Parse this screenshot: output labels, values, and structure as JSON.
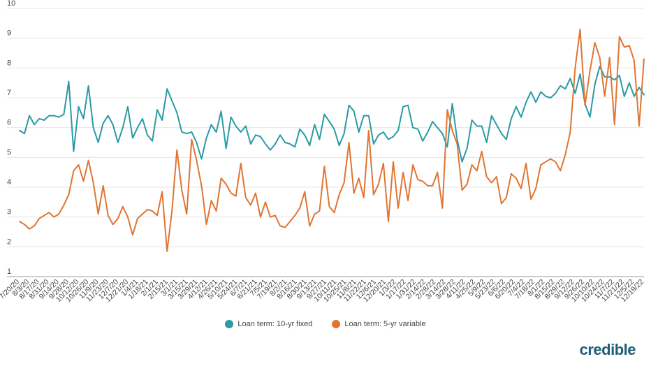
{
  "chart_data": {
    "type": "line",
    "title": "",
    "xlabel": "",
    "ylabel": "",
    "ylim": [
      1,
      10
    ],
    "yticks": [
      1,
      2,
      3,
      4,
      5,
      6,
      7,
      8,
      9,
      10
    ],
    "grid": true,
    "legend_position": "bottom-center",
    "x_labels": [
      "7/20/20",
      "8/3/20",
      "8/17/20",
      "8/31/20",
      "9/14/20",
      "9/28/20",
      "10/12/20",
      "10/26/20",
      "11/9/20",
      "11/23/20",
      "12/7/20",
      "12/21/20",
      "1/4/21",
      "1/18/21",
      "2/1/21",
      "2/15/21",
      "3/1/21",
      "3/15/21",
      "3/29/21",
      "4/12/21",
      "4/26/21",
      "5/10/21",
      "5/24/21",
      "6/7/21",
      "6/21/21",
      "7/5/21",
      "7/19/21",
      "8/2/21",
      "8/16/21",
      "8/30/21",
      "9/13/21",
      "9/27/21",
      "10/11/21",
      "10/25/21",
      "11/8/21",
      "11/22/21",
      "12/6/21",
      "12/20/21",
      "1/3/22",
      "1/17/22",
      "1/31/22",
      "2/14/22",
      "2/28/22",
      "3/14/22",
      "3/28/22",
      "4/11/22",
      "4/25/22",
      "5/9/22",
      "5/23/22",
      "6/6/22",
      "6/20/22",
      "7/4/22",
      "7/18/22",
      "8/1/22",
      "8/15/22",
      "8/29/22",
      "9/12/22",
      "9/26/22",
      "10/10/22",
      "10/24/22",
      "11/7/22",
      "11/21/22",
      "12/5/22",
      "12/19/22"
    ],
    "series": [
      {
        "name": "Loan term: 10-yr fixed",
        "color": "#2a9aa5",
        "values": [
          5.9,
          5.8,
          6.4,
          6.1,
          6.3,
          6.25,
          6.4,
          6.4,
          6.35,
          6.45,
          7.55,
          5.2,
          6.7,
          6.3,
          7.4,
          6.0,
          5.5,
          6.15,
          6.4,
          6.1,
          5.5,
          6.0,
          6.7,
          5.65,
          6.0,
          6.3,
          5.75,
          5.55,
          6.6,
          6.25,
          7.3,
          6.9,
          6.5,
          5.85,
          5.8,
          5.85,
          5.5,
          4.95,
          5.65,
          6.1,
          5.85,
          6.55,
          5.3,
          6.35,
          6.05,
          5.85,
          6.05,
          5.45,
          5.75,
          5.7,
          5.45,
          5.25,
          5.45,
          5.75,
          5.5,
          5.45,
          5.35,
          5.95,
          5.75,
          5.4,
          6.1,
          5.6,
          6.45,
          6.2,
          5.95,
          5.4,
          5.8,
          6.75,
          6.55,
          5.85,
          6.4,
          6.4,
          5.45,
          5.75,
          5.85,
          5.6,
          5.7,
          5.9,
          6.7,
          6.75,
          6.0,
          5.95,
          5.55,
          5.85,
          6.2,
          6.0,
          5.8,
          5.35,
          6.8,
          5.6,
          4.85,
          5.3,
          6.25,
          6.05,
          6.05,
          5.5,
          6.4,
          6.1,
          5.8,
          5.6,
          6.3,
          6.7,
          6.35,
          6.85,
          7.2,
          6.85,
          7.2,
          7.05,
          7.0,
          7.15,
          7.4,
          7.3,
          7.65,
          7.15,
          7.8,
          6.8,
          6.35,
          7.45,
          8.05,
          7.7,
          7.7,
          7.6,
          7.75,
          7.05,
          7.5,
          7.05,
          7.35,
          7.1
        ]
      },
      {
        "name": "Loan term: 5-yr variable",
        "color": "#e07533",
        "values": [
          2.85,
          2.75,
          2.6,
          2.7,
          2.95,
          3.05,
          3.15,
          3.0,
          3.1,
          3.4,
          3.75,
          4.55,
          4.75,
          4.2,
          4.9,
          4.15,
          3.1,
          4.05,
          3.05,
          2.75,
          2.95,
          3.35,
          3.0,
          2.4,
          2.95,
          3.1,
          3.25,
          3.2,
          3.05,
          3.85,
          1.85,
          3.2,
          5.25,
          3.9,
          3.1,
          5.6,
          4.9,
          4.05,
          2.75,
          3.55,
          3.2,
          4.3,
          4.1,
          3.8,
          3.7,
          4.8,
          3.65,
          3.4,
          3.8,
          3.0,
          3.5,
          3.0,
          3.05,
          2.7,
          2.65,
          2.85,
          3.05,
          3.3,
          3.85,
          2.7,
          3.1,
          3.2,
          4.7,
          3.35,
          3.15,
          3.75,
          4.15,
          5.5,
          3.8,
          4.3,
          3.65,
          5.9,
          3.75,
          4.1,
          4.8,
          2.85,
          4.85,
          3.3,
          4.5,
          3.55,
          4.75,
          4.25,
          4.2,
          4.05,
          4.05,
          4.5,
          3.3,
          6.6,
          5.9,
          5.45,
          3.9,
          4.1,
          4.75,
          4.55,
          5.2,
          4.35,
          4.15,
          4.35,
          3.45,
          3.65,
          4.45,
          4.3,
          3.95,
          4.8,
          3.6,
          3.95,
          4.75,
          4.85,
          4.95,
          4.85,
          4.55,
          5.1,
          5.85,
          8.0,
          9.3,
          6.75,
          7.9,
          8.85,
          8.35,
          7.05,
          8.35,
          6.1,
          9.05,
          8.7,
          8.75,
          8.25,
          6.05,
          8.3
        ]
      }
    ]
  },
  "legend": {
    "items": [
      {
        "label": "Loan term: 10-yr fixed",
        "color": "#2a9aa5"
      },
      {
        "label": "Loan term: 5-yr variable",
        "color": "#e07533"
      }
    ]
  },
  "brand": {
    "logo_text": "credible"
  }
}
